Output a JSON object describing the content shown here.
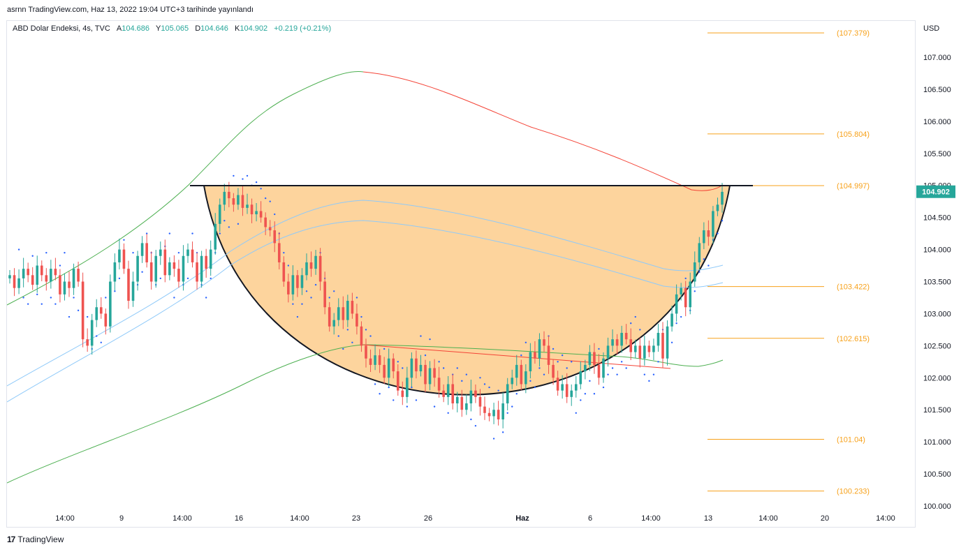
{
  "publish_info": "asrnn TradingView.com, Haz 13, 2022 19:04 UTC+3 tarihinde yayınlandı",
  "legend": {
    "symbol": "ABD Dolar Endeksi, 4s, TVC",
    "open_label": "A",
    "open": "104.686",
    "high_label": "Y",
    "high": "105.065",
    "low_label": "D",
    "low": "104.646",
    "close_label": "K",
    "close": "104.902",
    "change": "+0.219 (+0.21%)"
  },
  "currency": "USD",
  "footer": {
    "logo_icon": "tradingview-logo-icon",
    "brand": "TradingView"
  },
  "colors": {
    "up": "#26a69a",
    "down": "#ef5350",
    "fib": "#f7a11a",
    "cup": "#fdcc8c",
    "sar": "#2962ff",
    "ma_red": "#f44336",
    "ma_green": "#4caf50",
    "ma_blue": "#90caf9"
  },
  "chart_data": {
    "type": "candlestick",
    "ylim": [
      100.0,
      107.45
    ],
    "y_ticks": [
      "107.000",
      "106.500",
      "106.000",
      "105.500",
      "105.000",
      "104.500",
      "104.000",
      "103.500",
      "103.000",
      "102.500",
      "102.000",
      "101.500",
      "101.000",
      "100.500",
      "100.000"
    ],
    "x_ticks": [
      "14:00",
      "9",
      "14:00",
      "16",
      "14:00",
      "23",
      "26",
      "Haz",
      "6",
      "14:00",
      "13",
      "14:00",
      "20",
      "14:00"
    ],
    "last_price": "104.902",
    "fib_levels": [
      {
        "value": 107.379,
        "label": "(107.379)"
      },
      {
        "value": 105.804,
        "label": "(105.804)"
      },
      {
        "value": 104.997,
        "label": "(104.997)"
      },
      {
        "value": 103.422,
        "label": "(103.422)"
      },
      {
        "value": 102.615,
        "label": "(102.615)"
      },
      {
        "value": 101.04,
        "label": "(101.04)"
      },
      {
        "value": 100.233,
        "label": "(100.233)"
      }
    ],
    "resistance_level": 104.997,
    "cup_bottom": 101.3,
    "closes": [
      103.6,
      103.4,
      103.55,
      103.7,
      103.6,
      103.45,
      103.75,
      103.6,
      103.5,
      103.7,
      103.6,
      103.3,
      103.5,
      103.4,
      103.7,
      103.5,
      102.6,
      102.5,
      102.9,
      103.1,
      103.0,
      102.8,
      103.5,
      103.8,
      104.0,
      103.7,
      103.2,
      103.5,
      103.9,
      104.1,
      103.8,
      103.5,
      103.9,
      104.0,
      103.6,
      103.8,
      103.7,
      103.5,
      103.9,
      104.0,
      103.8,
      103.5,
      103.9,
      103.7,
      104.0,
      104.4,
      104.7,
      104.9,
      104.8,
      104.7,
      104.85,
      104.65,
      104.7,
      104.55,
      104.6,
      104.5,
      104.35,
      104.3,
      104.1,
      103.8,
      103.5,
      103.3,
      103.6,
      103.4,
      103.6,
      103.8,
      103.7,
      103.9,
      103.5,
      103.1,
      102.8,
      102.9,
      103.1,
      102.9,
      103.2,
      103.0,
      102.8,
      102.5,
      102.3,
      102.2,
      102.35,
      102.2,
      102.0,
      102.3,
      102.1,
      101.8,
      101.7,
      102.0,
      102.3,
      102.1,
      102.2,
      101.9,
      102.15,
      102.0,
      101.8,
      101.7,
      101.9,
      101.6,
      101.7,
      101.5,
      101.6,
      101.8,
      101.7,
      101.55,
      101.45,
      101.4,
      101.5,
      101.35,
      101.6,
      101.9,
      102.0,
      102.2,
      101.9,
      102.1,
      102.4,
      102.3,
      102.6,
      102.5,
      102.2,
      102.0,
      101.8,
      101.9,
      101.7,
      101.8,
      101.9,
      102.1,
      102.2,
      102.4,
      102.2,
      102.0,
      102.3,
      102.5,
      102.6,
      102.5,
      102.7,
      102.6,
      102.4,
      102.5,
      102.3,
      102.5,
      102.4,
      102.5,
      102.7,
      102.3,
      102.8,
      103.0,
      103.3,
      103.4,
      103.1,
      103.5,
      103.8,
      104.1,
      104.3,
      104.2,
      104.6,
      104.7,
      104.9
    ]
  }
}
